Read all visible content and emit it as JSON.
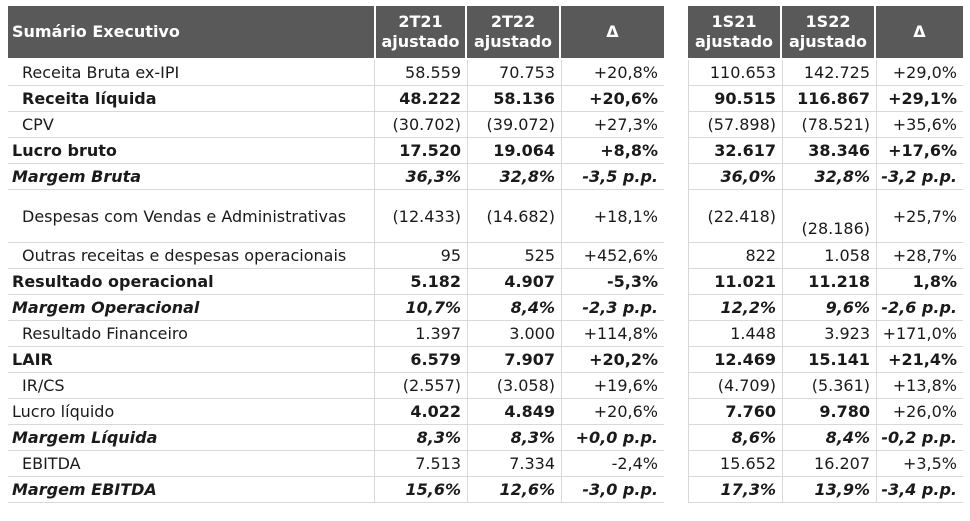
{
  "header": {
    "title": "Sumário Executivo",
    "cols": [
      {
        "l1": "2T21",
        "l2": "ajustado"
      },
      {
        "l1": "2T22",
        "l2": "ajustado"
      },
      {
        "l1": "Δ",
        "l2": ""
      },
      {
        "l1": "1S21",
        "l2": "ajustado"
      },
      {
        "l1": "1S22",
        "l2": "ajustado"
      },
      {
        "l1": "Δ",
        "l2": ""
      }
    ]
  },
  "rows": [
    {
      "label": "Receita Bruta ex-IPI",
      "style": "indent",
      "v": [
        "58.559",
        "70.753",
        "+20,8%",
        "110.653",
        "142.725",
        "+29,0%"
      ]
    },
    {
      "label": "Receita líquida",
      "style": "bold-indent",
      "v": [
        "48.222",
        "58.136",
        "+20,6%",
        "90.515",
        "116.867",
        "+29,1%"
      ]
    },
    {
      "label": "CPV",
      "style": "indent",
      "v": [
        "(30.702)",
        "(39.072)",
        "+27,3%",
        "(57.898)",
        "(78.521)",
        "+35,6%"
      ]
    },
    {
      "label": "Lucro bruto",
      "style": "bold",
      "v": [
        "17.520",
        "19.064",
        "+8,8%",
        "32.617",
        "38.346",
        "+17,6%"
      ]
    },
    {
      "label": "Margem Bruta",
      "style": "italic",
      "v": [
        "36,3%",
        "32,8%",
        "-3,5 p.p.",
        "36,0%",
        "32,8%",
        "-3,2 p.p."
      ]
    },
    {
      "label": "Despesas com Vendas e Administrativas",
      "style": "indent-tall",
      "v": [
        "(12.433)",
        "(14.682)",
        "+18,1%",
        "(22.418)",
        "(28.186)",
        "+25,7%"
      ]
    },
    {
      "label": "Outras receitas e despesas operacionais",
      "style": "indent",
      "v": [
        "95",
        "525",
        "+452,6%",
        "822",
        "1.058",
        "+28,7%"
      ]
    },
    {
      "label": "Resultado operacional",
      "style": "bold",
      "v": [
        "5.182",
        "4.907",
        "-5,3%",
        "11.021",
        "11.218",
        "1,8%"
      ]
    },
    {
      "label": "Margem Operacional",
      "style": "italic",
      "v": [
        "10,7%",
        "8,4%",
        "-2,3 p.p.",
        "12,2%",
        "9,6%",
        "-2,6 p.p."
      ]
    },
    {
      "label": "Resultado Financeiro",
      "style": "indent",
      "v": [
        "1.397",
        "3.000",
        "+114,8%",
        "1.448",
        "3.923",
        "+171,0%"
      ]
    },
    {
      "label": "LAIR",
      "style": "bold",
      "v": [
        "6.579",
        "7.907",
        "+20,2%",
        "12.469",
        "15.141",
        "+21,4%"
      ]
    },
    {
      "label": "IR/CS",
      "style": "indent",
      "v": [
        "(2.557)",
        "(3.058)",
        "+19,6%",
        "(4.709)",
        "(5.361)",
        "+13,8%"
      ]
    },
    {
      "label": "Lucro líquido",
      "style": "bold-partial",
      "v": [
        "4.022",
        "4.849",
        "+20,6%",
        "7.760",
        "9.780",
        "+26,0%"
      ]
    },
    {
      "label": "Margem Líquida",
      "style": "italic",
      "v": [
        "8,3%",
        "8,3%",
        "+0,0 p.p.",
        "8,6%",
        "8,4%",
        "-0,2 p.p."
      ]
    },
    {
      "label": "EBITDA",
      "style": "indent",
      "v": [
        "7.513",
        "7.334",
        "-2,4%",
        "15.652",
        "16.207",
        "+3,5%"
      ]
    },
    {
      "label": "Margem EBITDA",
      "style": "italic",
      "v": [
        "15,6%",
        "12,6%",
        "-3,0 p.p.",
        "17,3%",
        "13,9%",
        "-3,4 p.p."
      ]
    }
  ]
}
